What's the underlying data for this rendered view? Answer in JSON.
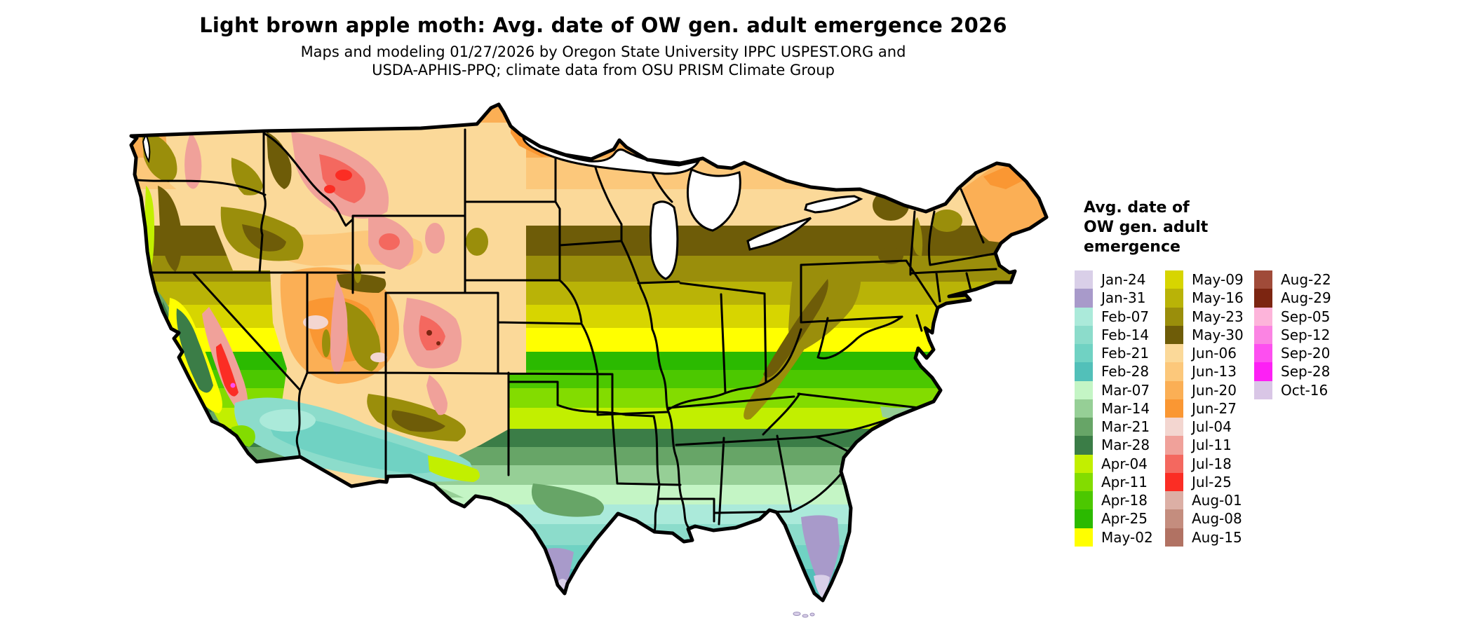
{
  "title": "Light brown apple moth: Avg. date of OW gen. adult emergence 2026",
  "subtitle_line1": "Maps and modeling 01/27/2026 by Oregon State University IPPC USPEST.ORG and",
  "subtitle_line2": "USDA-APHIS-PPQ; climate data from OSU PRISM Climate Group",
  "legend": {
    "title_lines": [
      "Avg. date of",
      "OW gen. adult",
      "emergence"
    ],
    "columns": [
      {
        "entries": [
          {
            "label": "Jan-24",
            "color": "#d9cfe8"
          },
          {
            "label": "Jan-31",
            "color": "#a89aca"
          },
          {
            "label": "Feb-07",
            "color": "#abeada"
          },
          {
            "label": "Feb-14",
            "color": "#8cdccb"
          },
          {
            "label": "Feb-21",
            "color": "#70d2c3"
          },
          {
            "label": "Feb-28",
            "color": "#52c0b9"
          },
          {
            "label": "Mar-07",
            "color": "#c4f5c5"
          },
          {
            "label": "Mar-14",
            "color": "#96cf96"
          },
          {
            "label": "Mar-21",
            "color": "#67a567"
          },
          {
            "label": "Mar-28",
            "color": "#3b7d47"
          },
          {
            "label": "Apr-04",
            "color": "#c2ef00"
          },
          {
            "label": "Apr-11",
            "color": "#83dc00"
          },
          {
            "label": "Apr-18",
            "color": "#4cc800"
          },
          {
            "label": "Apr-25",
            "color": "#2bba00"
          },
          {
            "label": "May-02",
            "color": "#ffff00"
          }
        ]
      },
      {
        "entries": [
          {
            "label": "May-09",
            "color": "#d7d500"
          },
          {
            "label": "May-16",
            "color": "#b9b307"
          },
          {
            "label": "May-23",
            "color": "#9a8e0b"
          },
          {
            "label": "May-30",
            "color": "#6e5c08"
          },
          {
            "label": "Jun-06",
            "color": "#fbd999"
          },
          {
            "label": "Jun-13",
            "color": "#fcc87b"
          },
          {
            "label": "Jun-20",
            "color": "#fbaf55"
          },
          {
            "label": "Jun-27",
            "color": "#fa9733"
          },
          {
            "label": "Jul-04",
            "color": "#f3d6d0"
          },
          {
            "label": "Jul-11",
            "color": "#f0a19a"
          },
          {
            "label": "Jul-18",
            "color": "#f4685f"
          },
          {
            "label": "Jul-25",
            "color": "#fb2d24"
          },
          {
            "label": "Aug-01",
            "color": "#dcafa5"
          },
          {
            "label": "Aug-08",
            "color": "#c48d7e"
          },
          {
            "label": "Aug-15",
            "color": "#b17263"
          }
        ]
      },
      {
        "entries": [
          {
            "label": "Aug-22",
            "color": "#a04b39"
          },
          {
            "label": "Aug-29",
            "color": "#7c2511"
          },
          {
            "label": "Sep-05",
            "color": "#fdb4da"
          },
          {
            "label": "Sep-12",
            "color": "#fb84e3"
          },
          {
            "label": "Sep-20",
            "color": "#fd4ff0"
          },
          {
            "label": "Sep-28",
            "color": "#fd20f5"
          },
          {
            "label": "Oct-16",
            "color": "#d9c6e6"
          }
        ]
      }
    ]
  }
}
